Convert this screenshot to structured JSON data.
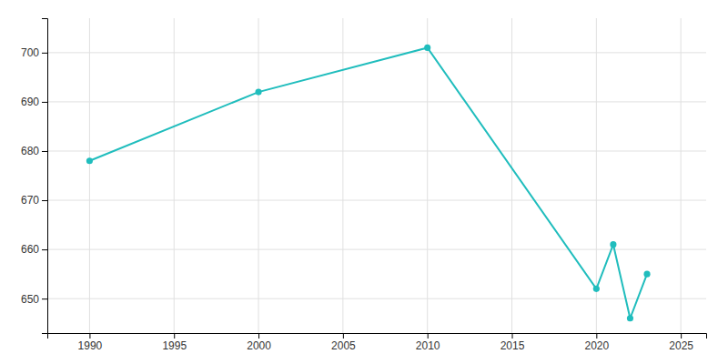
{
  "chart_data": {
    "type": "line",
    "x": [
      1990,
      2000,
      2010,
      2020,
      2021,
      2022,
      2023
    ],
    "values": [
      678,
      692,
      701,
      652,
      661,
      646,
      655
    ],
    "color": "#20BDBD",
    "marker": "circle",
    "xlim": [
      1987.5,
      2026.5
    ],
    "ylim": [
      643,
      707
    ],
    "xticks": [
      1990,
      1995,
      2000,
      2005,
      2010,
      2015,
      2020,
      2025
    ],
    "yticks": [
      650,
      660,
      670,
      680,
      690,
      700
    ],
    "grid": true
  }
}
